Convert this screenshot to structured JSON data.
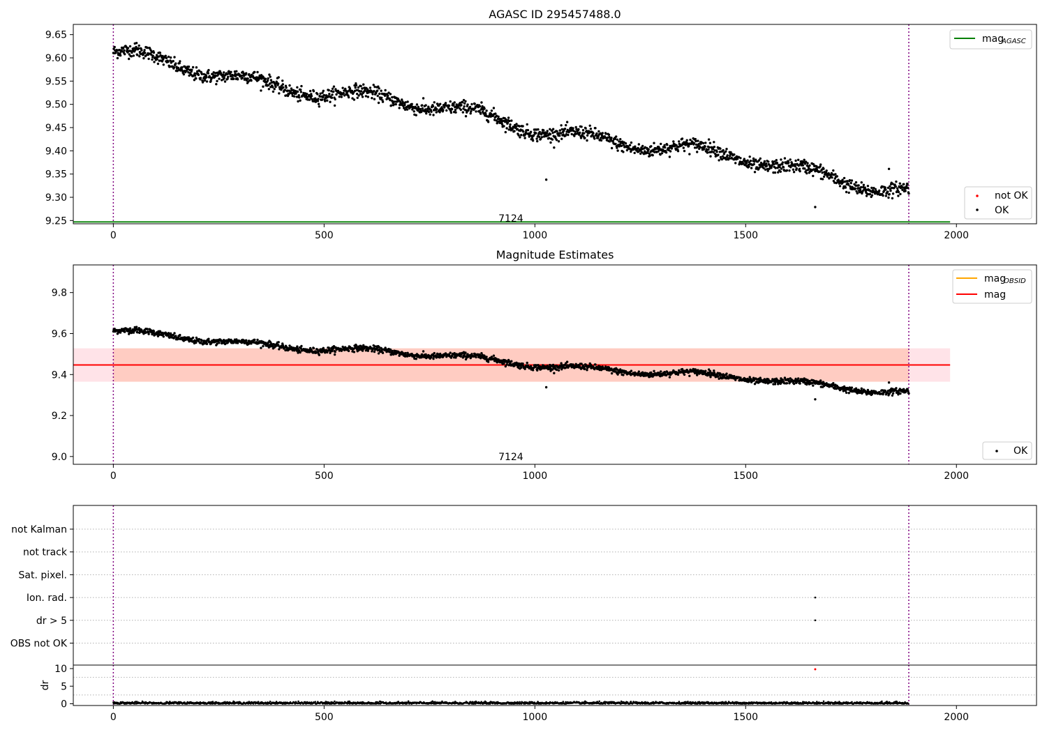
{
  "chart_data": [
    {
      "type": "scatter",
      "title": "AGASC ID 295457488.0",
      "xlim": [
        -95,
        2190
      ],
      "ylim": [
        9.243,
        9.672
      ],
      "xticks": [
        0,
        500,
        1000,
        1500,
        2000
      ],
      "yticks": [
        9.25,
        9.3,
        9.35,
        9.4,
        9.45,
        9.5,
        9.55,
        9.6,
        9.65
      ],
      "ytick_labels": [
        "9.25",
        "9.30",
        "9.35",
        "9.40",
        "9.45",
        "9.50",
        "9.55",
        "9.60",
        "9.65"
      ],
      "vlines": [
        0,
        1887
      ],
      "annotation": {
        "text": "7124",
        "x": 943,
        "y": 9.255
      },
      "mag_agasc": {
        "value": 9.247,
        "x_range": [
          -95,
          1985
        ],
        "color": "#008000"
      },
      "trend": {
        "x_start": 0,
        "y_start": 9.605,
        "x_end": 1887,
        "y_end": 9.318,
        "n_points": 1887,
        "noise": 0.012
      },
      "outliers": [
        {
          "x": 55,
          "y": 9.632
        },
        {
          "x": 1027,
          "y": 9.338
        },
        {
          "x": 1665,
          "y": 9.279
        },
        {
          "x": 1840,
          "y": 9.361
        }
      ],
      "legend_upper": [
        {
          "label": "mag",
          "subscript": "AGASC",
          "color": "#008000"
        }
      ],
      "legend_lower": [
        {
          "label": "not OK",
          "color": "#ff0000"
        },
        {
          "label": "OK",
          "color": "#000000"
        }
      ]
    },
    {
      "type": "scatter",
      "title": "Magnitude Estimates",
      "xlim": [
        -95,
        2190
      ],
      "ylim": [
        8.962,
        9.935
      ],
      "xticks": [
        0,
        500,
        1000,
        1500,
        2000
      ],
      "yticks": [
        9.0,
        9.2,
        9.4,
        9.6,
        9.8
      ],
      "ytick_labels": [
        "9.0",
        "9.2",
        "9.4",
        "9.6",
        "9.8"
      ],
      "vlines": [
        0,
        1887
      ],
      "annotation": {
        "text": "7124",
        "x": 943,
        "y": 9.0
      },
      "mag": {
        "value": 9.447,
        "x_range": [
          -95,
          1985
        ],
        "color": "#ff0000"
      },
      "mag_band": {
        "low": 9.365,
        "high": 9.528,
        "x_range": [
          -95,
          1985
        ]
      },
      "obsid_band": {
        "low": 9.365,
        "high": 9.528,
        "x_range": [
          0,
          1887
        ]
      },
      "legend_upper": [
        {
          "label": "mag",
          "subscript": "OBSID",
          "color": "#ffa500"
        },
        {
          "label": "mag",
          "subscript": "",
          "color": "#ff0000"
        }
      ],
      "legend_lower": [
        {
          "label": "OK",
          "color": "#000000"
        }
      ]
    },
    {
      "type": "scatter",
      "title": "",
      "xlim": [
        -95,
        2190
      ],
      "categories": [
        "not Kalman",
        "not track",
        "Sat. pixel.",
        "Ion. rad.",
        "dr > 5",
        "OBS not OK"
      ],
      "vlines": [
        0,
        1887
      ],
      "flag_points": [
        {
          "category": "Ion. rad.",
          "x": 1665
        },
        {
          "category": "dr > 5",
          "x": 1665
        }
      ]
    },
    {
      "type": "scatter",
      "title": "",
      "ylabel": "dr",
      "xlim": [
        -95,
        2190
      ],
      "ylim": [
        -0.5,
        11.0
      ],
      "xticks": [
        0,
        500,
        1000,
        1500,
        2000
      ],
      "yticks": [
        0,
        5,
        10
      ],
      "ytick_labels": [
        "0",
        "5",
        "10"
      ],
      "vlines": [
        0,
        1887
      ],
      "red_points": [
        {
          "x": 1665,
          "y": 9.8
        }
      ],
      "baseline": {
        "mean": 0.2,
        "noise": 0.18,
        "n_points": 1887
      }
    }
  ]
}
